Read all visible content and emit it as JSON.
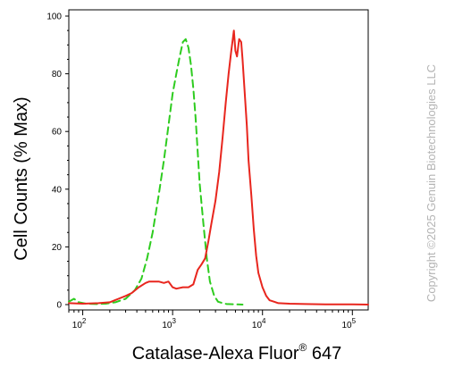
{
  "chart_data": {
    "type": "line",
    "xlabel": "Catalase-Alexa Fluor",
    "xlabel_sup": "®",
    "xlabel_suffix": " 647",
    "ylabel": "Cell Counts (% Max)",
    "x_scale": "log",
    "xlim": [
      70,
      150000
    ],
    "ylim": [
      0,
      100
    ],
    "y_ticks": [
      0,
      20,
      40,
      60,
      80,
      100
    ],
    "x_ticks": [
      {
        "value": 100,
        "base": "10",
        "exp": "2"
      },
      {
        "value": 1000,
        "base": "10",
        "exp": "3"
      },
      {
        "value": 10000,
        "base": "10",
        "exp": "4"
      },
      {
        "value": 100000,
        "base": "10",
        "exp": "5"
      }
    ],
    "grid": false,
    "legend": "none",
    "series": [
      {
        "color": "#2ecc1f",
        "style": "dashed",
        "x": [
          70,
          80,
          90,
          110,
          140,
          180,
          230,
          300,
          380,
          450,
          520,
          600,
          700,
          800,
          900,
          1000,
          1100,
          1200,
          1300,
          1400,
          1500,
          1600,
          1700,
          1800,
          1900,
          2000,
          2200,
          2400,
          2600,
          2900,
          3200,
          3600,
          4000,
          5000,
          6000
        ],
        "y": [
          1,
          2,
          0.8,
          0.3,
          0.2,
          0.3,
          0.8,
          2,
          5,
          9,
          16,
          25,
          38,
          50,
          62,
          73,
          80,
          86,
          91,
          92,
          89,
          83,
          75,
          65,
          53,
          42,
          28,
          16,
          8,
          3,
          1,
          0.5,
          0.2,
          0.1,
          0
        ]
      },
      {
        "color": "#e8261e",
        "style": "solid",
        "x": [
          70,
          100,
          150,
          200,
          250,
          300,
          350,
          420,
          500,
          550,
          600,
          700,
          800,
          900,
          1000,
          1100,
          1300,
          1500,
          1700,
          1900,
          2100,
          2300,
          2500,
          2700,
          3000,
          3300,
          3600,
          3900,
          4200,
          4500,
          4800,
          5000,
          5200,
          5500,
          5800,
          6000,
          6300,
          6700,
          7000,
          7500,
          8000,
          8500,
          9000,
          10000,
          11000,
          12000,
          13500,
          15000,
          20000,
          30000,
          50000,
          100000,
          150000
        ],
        "y": [
          0.5,
          0.3,
          0.5,
          0.8,
          2,
          3,
          4,
          6,
          7.5,
          8,
          8,
          8,
          7.5,
          8,
          6,
          5.5,
          6,
          6,
          7,
          12,
          14,
          16,
          22,
          28,
          36,
          46,
          58,
          70,
          80,
          88,
          95,
          88,
          86,
          92,
          91,
          85,
          75,
          62,
          50,
          38,
          26,
          17,
          11,
          6,
          3,
          1.5,
          1,
          0.5,
          0.3,
          0.2,
          0.1,
          0.1,
          0
        ]
      }
    ]
  },
  "watermark": "Copyright ©2025 Genuin Biotechnologies LLC"
}
